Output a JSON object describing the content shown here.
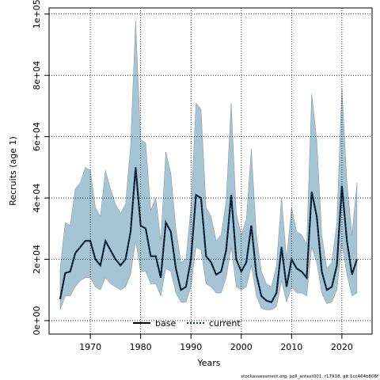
{
  "chart_data": {
    "type": "line",
    "xlabel": "Years",
    "ylabel": "Recruits (age 1)",
    "footer": "stockassessment.org, poll_antest001, r17918, git:1cc464b806f",
    "x": [
      1964,
      1965,
      1966,
      1967,
      1968,
      1969,
      1970,
      1971,
      1972,
      1973,
      1974,
      1975,
      1976,
      1977,
      1978,
      1979,
      1980,
      1981,
      1982,
      1983,
      1984,
      1985,
      1986,
      1987,
      1988,
      1989,
      1990,
      1991,
      1992,
      1993,
      1994,
      1995,
      1996,
      1997,
      1998,
      1999,
      2000,
      2001,
      2002,
      2003,
      2004,
      2005,
      2006,
      2007,
      2008,
      2009,
      2010,
      2011,
      2012,
      2013,
      2014,
      2015,
      2016,
      2017,
      2018,
      2019,
      2020,
      2021,
      2022,
      2023
    ],
    "series": [
      {
        "name": "base",
        "color": "#000000",
        "dash": "solid",
        "values": [
          7000,
          15500,
          16000,
          22000,
          24000,
          26000,
          26000,
          20000,
          18000,
          26000,
          23000,
          20000,
          18000,
          20000,
          29000,
          50000,
          31000,
          30000,
          21000,
          21000,
          14000,
          32000,
          29000,
          17000,
          10000,
          11000,
          20000,
          41000,
          40000,
          21000,
          19000,
          15000,
          16000,
          23000,
          41000,
          20000,
          16000,
          19000,
          31000,
          15000,
          8000,
          6500,
          6000,
          9000,
          24000,
          11000,
          20000,
          17000,
          16000,
          14000,
          42000,
          34000,
          16000,
          10000,
          11000,
          18000,
          44000,
          26000,
          15000,
          20000
        ]
      },
      {
        "name": "current",
        "color": "#0b3f6b",
        "dash": "dotted",
        "band_color": "#a5c4d4",
        "values": [
          7000,
          15500,
          16000,
          22000,
          24000,
          26000,
          26000,
          20000,
          18000,
          26000,
          23000,
          20000,
          18000,
          20000,
          29000,
          50000,
          31000,
          30000,
          21000,
          21000,
          14000,
          32000,
          29000,
          17000,
          10000,
          11000,
          20000,
          41000,
          40000,
          21000,
          19000,
          15000,
          16000,
          23000,
          41000,
          20000,
          16000,
          19000,
          31000,
          15000,
          8000,
          6500,
          6000,
          9000,
          24000,
          11000,
          20000,
          17000,
          16000,
          14000,
          42000,
          34000,
          16000,
          10000,
          11000,
          18000,
          44000,
          26000,
          15000,
          20000
        ],
        "lower": [
          3500,
          8000,
          8000,
          11000,
          13000,
          14000,
          14000,
          11000,
          10000,
          14000,
          12000,
          11000,
          10000,
          11000,
          15000,
          26000,
          16000,
          16000,
          12000,
          12000,
          8000,
          17000,
          16000,
          9000,
          6000,
          6000,
          11000,
          24000,
          23000,
          12000,
          11000,
          9000,
          9000,
          14000,
          24000,
          11000,
          10000,
          11000,
          18000,
          8000,
          4000,
          3500,
          3500,
          4500,
          13000,
          6000,
          11000,
          9000,
          9000,
          8000,
          24000,
          19000,
          9000,
          5500,
          6000,
          10000,
          25000,
          15000,
          8000,
          9000
        ],
        "upper": [
          17000,
          32000,
          31000,
          43000,
          45000,
          50000,
          49000,
          37000,
          34000,
          49000,
          43000,
          38000,
          35000,
          38000,
          57000,
          98000,
          59000,
          58000,
          36000,
          40000,
          26000,
          55000,
          48000,
          30000,
          19000,
          20000,
          37000,
          71000,
          69000,
          37000,
          34000,
          26000,
          28000,
          39000,
          71000,
          35000,
          28000,
          33000,
          56000,
          28000,
          16000,
          12000,
          11000,
          18000,
          40000,
          20000,
          37000,
          29000,
          28000,
          25000,
          74000,
          59000,
          28000,
          17000,
          19000,
          32000,
          76000,
          45000,
          28000,
          45000
        ]
      }
    ],
    "xlim": [
      1961.8,
      2026
    ],
    "ylim": [
      -4400,
      102000
    ],
    "xticks": [
      1970,
      1980,
      1990,
      2000,
      2010,
      2020
    ],
    "yticks": [
      {
        "value": 0,
        "label": "0e+00"
      },
      {
        "value": 20000,
        "label": "2e+04"
      },
      {
        "value": 40000,
        "label": "4e+04"
      },
      {
        "value": 60000,
        "label": "6e+04"
      },
      {
        "value": 80000,
        "label": "8e+04"
      },
      {
        "value": 100000,
        "label": "1e+05"
      }
    ],
    "grid": true,
    "legend": "bottom"
  }
}
